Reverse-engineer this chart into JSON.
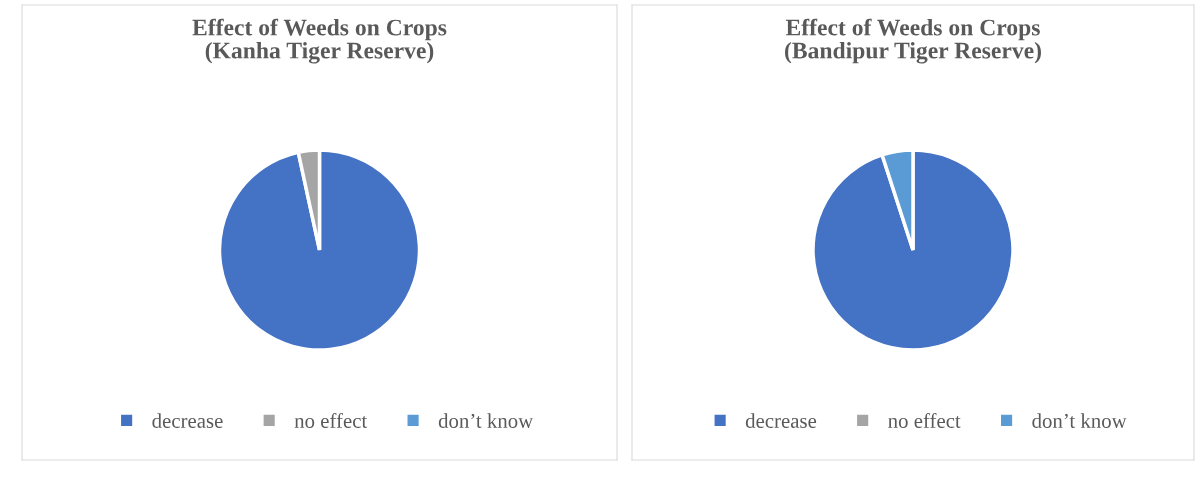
{
  "chart_data": [
    {
      "type": "pie",
      "title": "Effect of Weeds on Crops\n(Kanha Tiger Reserve)",
      "categories": [
        "decrease",
        "no effect",
        "don’t know"
      ],
      "values": [
        96.6,
        3.4,
        0
      ],
      "colors": [
        "#4472c4",
        "#a5a5a5",
        "#5b9bd5"
      ],
      "legend": "bottom"
    },
    {
      "type": "pie",
      "title": "Effect of Weeds on Crops\n(Bandipur Tiger Reserve)",
      "categories": [
        "decrease",
        "no effect",
        "don’t know"
      ],
      "values": [
        95,
        0,
        5
      ],
      "colors": [
        "#4472c4",
        "#a5a5a5",
        "#5b9bd5"
      ],
      "legend": "bottom"
    }
  ]
}
